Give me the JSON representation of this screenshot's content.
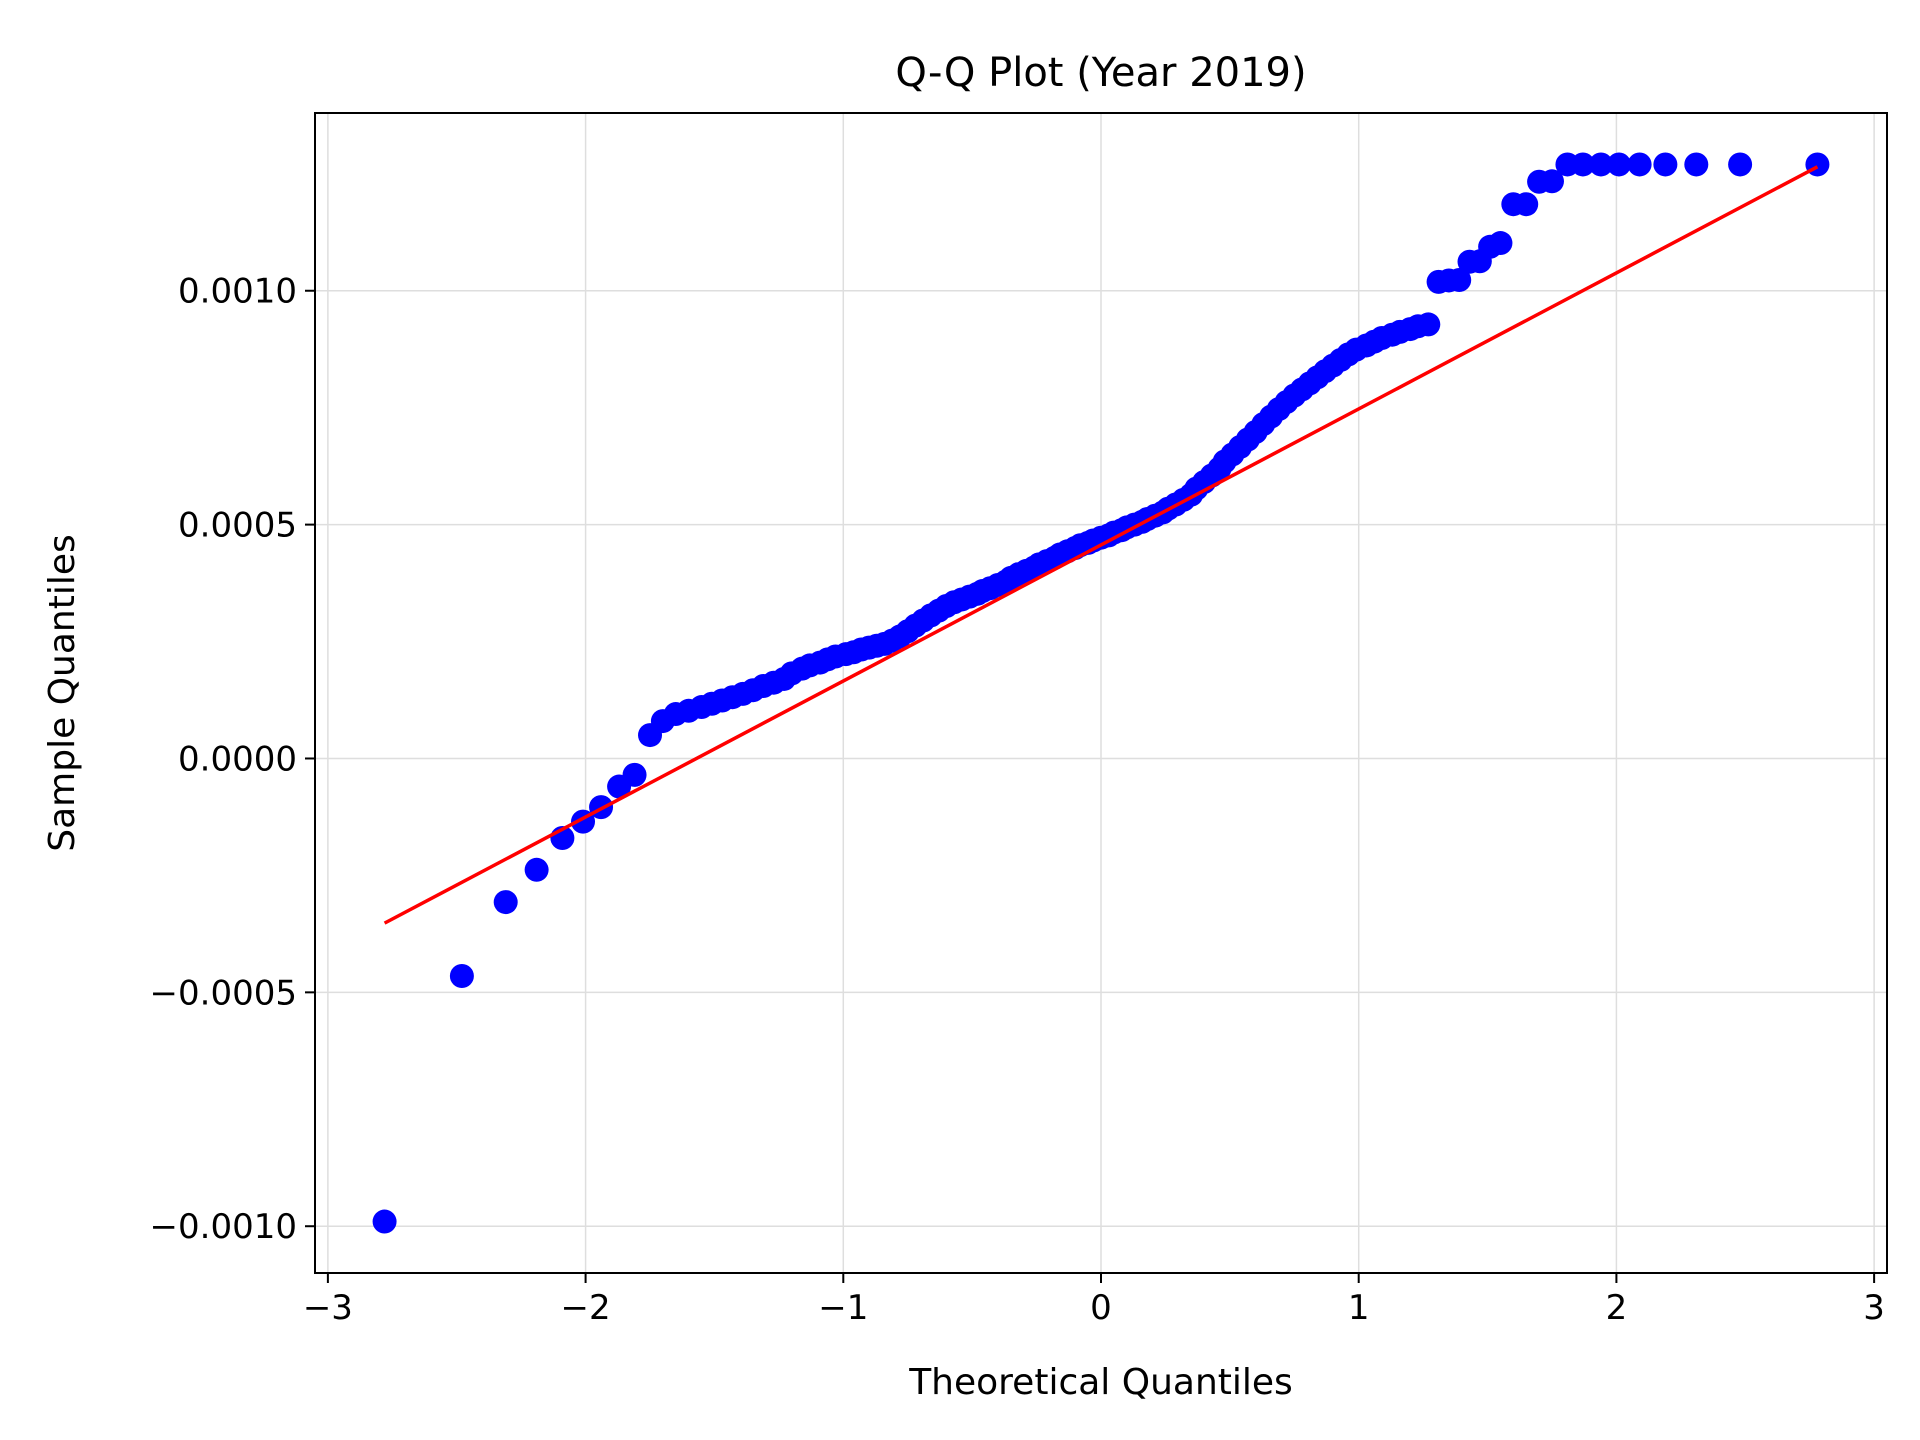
{
  "chart_data": {
    "type": "scatter",
    "title": "Q-Q Plot (Year 2019)",
    "xlabel": "Theoretical Quantiles",
    "ylabel": "Sample Quantiles",
    "xlim": [
      -3.05,
      3.05
    ],
    "ylim": [
      -0.0011,
      0.00138
    ],
    "xticks": [
      {
        "value": -3,
        "label": "−3"
      },
      {
        "value": -2,
        "label": "−2"
      },
      {
        "value": -1,
        "label": "−1"
      },
      {
        "value": 0,
        "label": "0"
      },
      {
        "value": 1,
        "label": "1"
      },
      {
        "value": 2,
        "label": "2"
      },
      {
        "value": 3,
        "label": "3"
      }
    ],
    "yticks": [
      {
        "value": -0.001,
        "label": "−0.0010"
      },
      {
        "value": -0.0005,
        "label": "−0.0005"
      },
      {
        "value": 0.0,
        "label": "0.0000"
      },
      {
        "value": 0.0005,
        "label": "0.0005"
      },
      {
        "value": 0.001,
        "label": "0.0010"
      }
    ],
    "grid": true,
    "series": [
      {
        "kind": "points",
        "color": "#0000ff",
        "x": [
          -2.78,
          -2.48,
          -2.31,
          -2.19,
          -2.09,
          -2.01,
          -1.94,
          -1.87,
          -1.81,
          -1.75,
          -1.7,
          -1.65,
          -1.6,
          -1.55,
          -1.51,
          -1.47,
          -1.43,
          -1.39,
          -1.35,
          -1.31,
          -1.27,
          -1.23,
          -1.2,
          -1.16,
          -1.13,
          -1.09,
          -1.06,
          -1.03,
          -0.99,
          -0.96,
          -0.93,
          -0.9,
          -0.87,
          -0.84,
          -0.81,
          -0.78,
          -0.75,
          -0.72,
          -0.69,
          -0.66,
          -0.63,
          -0.6,
          -0.57,
          -0.54,
          -0.51,
          -0.48,
          -0.46,
          -0.43,
          -0.4,
          -0.37,
          -0.35,
          -0.32,
          -0.29,
          -0.26,
          -0.24,
          -0.21,
          -0.18,
          -0.16,
          -0.13,
          -0.1,
          -0.08,
          -0.05,
          -0.03,
          0.0,
          0.03,
          0.05,
          0.08,
          0.1,
          0.13,
          0.16,
          0.18,
          0.21,
          0.24,
          0.26,
          0.29,
          0.32,
          0.35,
          0.37,
          0.4,
          0.43,
          0.46,
          0.48,
          0.51,
          0.54,
          0.57,
          0.6,
          0.63,
          0.66,
          0.69,
          0.72,
          0.75,
          0.78,
          0.81,
          0.84,
          0.87,
          0.9,
          0.93,
          0.96,
          0.99,
          1.03,
          1.06,
          1.09,
          1.13,
          1.16,
          1.2,
          1.23,
          1.27,
          1.31,
          1.35,
          1.39,
          1.43,
          1.47,
          1.51,
          1.55,
          1.6,
          1.65,
          1.7,
          1.75,
          1.81,
          1.87,
          1.94,
          2.01,
          2.09,
          2.19,
          2.31,
          2.48,
          2.78
        ],
        "y": [
          -0.00099,
          -0.000465,
          -0.000307,
          -0.000238,
          -0.00017,
          -0.000135,
          -0.000104,
          -6e-05,
          -3.5e-05,
          5e-05,
          8e-05,
          9.5e-05,
          0.000102,
          0.00011,
          0.000117,
          0.000124,
          0.000131,
          0.000138,
          0.000146,
          0.000155,
          0.000162,
          0.00017,
          0.000182,
          0.000192,
          0.000199,
          0.000205,
          0.000212,
          0.000218,
          0.000223,
          0.000227,
          0.000233,
          0.000237,
          0.000241,
          0.000245,
          0.000252,
          0.000261,
          0.000272,
          0.000284,
          0.000295,
          0.000306,
          0.000316,
          0.000326,
          0.000334,
          0.00034,
          0.000346,
          0.000352,
          0.000358,
          0.000364,
          0.000371,
          0.000378,
          0.000386,
          0.000394,
          0.000401,
          0.000408,
          0.000415,
          0.000422,
          0.000429,
          0.000436,
          0.000443,
          0.00045,
          0.000456,
          0.000461,
          0.000466,
          0.000472,
          0.000477,
          0.000483,
          0.000488,
          0.000494,
          0.0005,
          0.000506,
          0.000512,
          0.000519,
          0.000526,
          0.000534,
          0.000543,
          0.000553,
          0.000564,
          0.000577,
          0.000591,
          0.000605,
          0.00062,
          0.000635,
          0.00065,
          0.000666,
          0.000682,
          0.000698,
          0.000715,
          0.000731,
          0.000747,
          0.000762,
          0.000776,
          0.000789,
          0.000802,
          0.000815,
          0.000828,
          0.00084,
          0.000852,
          0.000864,
          0.000874,
          0.000883,
          0.000891,
          0.000899,
          0.000906,
          0.000912,
          0.000918,
          0.000924,
          0.000928,
          0.001019,
          0.001022,
          0.001023,
          0.001062,
          0.001063,
          0.001094,
          0.001102,
          0.001185,
          0.001185,
          0.001233,
          0.001234,
          0.00127,
          0.00127,
          0.00127,
          0.00127,
          0.00127,
          0.00127,
          0.00127,
          0.00127,
          0.00127
        ]
      },
      {
        "kind": "line",
        "color": "#ff0000",
        "x": [
          -2.78,
          2.78
        ],
        "y": [
          -0.000352,
          0.001265
        ]
      }
    ]
  }
}
